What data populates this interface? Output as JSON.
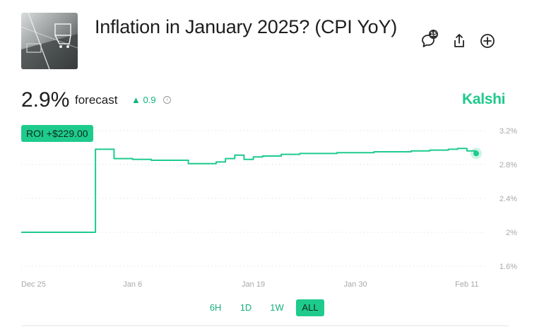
{
  "market": {
    "title": "Inflation in January 2025? (CPI YoY)",
    "comment_count": "15"
  },
  "forecast": {
    "value": "2.9%",
    "label": "forecast",
    "delta": "0.9",
    "delta_direction": "up"
  },
  "brand": "Kalshi",
  "roi_badge": "ROI +$229.00",
  "icons": [
    "comment-icon",
    "share-icon",
    "add-icon",
    "info-icon",
    "triangle-up-icon"
  ],
  "colors": {
    "accent": "#1ecb8d",
    "brand": "#1ec98c",
    "text": "#1e1e1e"
  },
  "range_buttons": [
    {
      "label": "6H",
      "active": false
    },
    {
      "label": "1D",
      "active": false
    },
    {
      "label": "1W",
      "active": false
    },
    {
      "label": "ALL",
      "active": true
    }
  ],
  "chart_data": {
    "type": "line",
    "x_ticks": [
      "Dec 25",
      "Jan 6",
      "Jan 19",
      "Jan 30",
      "Feb 11"
    ],
    "y_ticks": [
      "3.2%",
      "2.8%",
      "2.4%",
      "2%",
      "1.6%"
    ],
    "ylim": [
      1.6,
      3.2
    ],
    "grid": true,
    "series": [
      {
        "color": "#1ecb8d",
        "x": [
          "2024-12-25",
          "2024-12-27",
          "2024-12-29",
          "2024-12-31",
          "2025-01-01",
          "2025-01-02",
          "2025-01-03",
          "2025-01-04",
          "2025-01-06",
          "2025-01-08",
          "2025-01-10",
          "2025-01-12",
          "2025-01-14",
          "2025-01-15",
          "2025-01-16",
          "2025-01-17",
          "2025-01-18",
          "2025-01-19",
          "2025-01-20",
          "2025-01-22",
          "2025-01-24",
          "2025-01-26",
          "2025-01-28",
          "2025-01-30",
          "2025-02-01",
          "2025-02-03",
          "2025-02-05",
          "2025-02-07",
          "2025-02-09",
          "2025-02-10",
          "2025-02-11",
          "2025-02-12"
        ],
        "y": [
          2.0,
          2.0,
          2.0,
          2.0,
          2.0,
          2.98,
          2.98,
          2.87,
          2.86,
          2.85,
          2.85,
          2.81,
          2.81,
          2.83,
          2.87,
          2.91,
          2.86,
          2.89,
          2.9,
          2.92,
          2.93,
          2.93,
          2.94,
          2.94,
          2.95,
          2.95,
          2.96,
          2.97,
          2.98,
          2.99,
          2.96,
          2.93
        ]
      }
    ]
  }
}
